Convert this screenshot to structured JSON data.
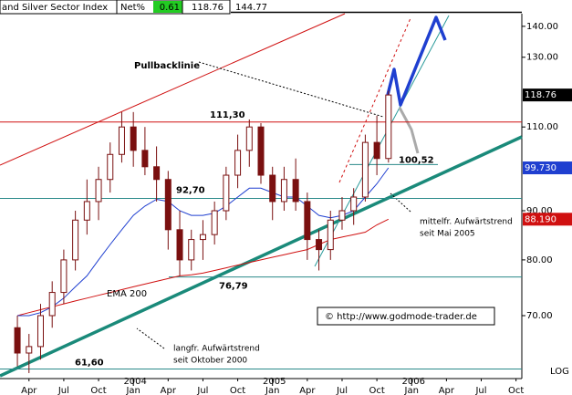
{
  "chart_data": {
    "type": "candlestick",
    "title": "and Silver Sector Index",
    "header": {
      "net_label": "Net%",
      "net_value": 0.61,
      "last": 118.76,
      "high": 144.77
    },
    "log_scale": true,
    "ylim": [
      60.2,
      144.3
    ],
    "yticks": [
      {
        "value": 70,
        "label": "70.00"
      },
      {
        "value": 80,
        "label": "80.00"
      },
      {
        "value": 90,
        "label": "90.00"
      },
      {
        "value": 110,
        "label": "110.00"
      },
      {
        "value": 130,
        "label": "130.00"
      },
      {
        "value": 140,
        "label": "140.00"
      }
    ],
    "xlim": [
      "2003-02",
      "2006-10"
    ],
    "xticks": [
      {
        "value": "2003-04",
        "label": "Apr"
      },
      {
        "value": "2003-07",
        "label": "Jul"
      },
      {
        "value": "2003-10",
        "label": "Oct"
      },
      {
        "value": "2004-01",
        "label": "Jan"
      },
      {
        "value": "2004-04",
        "label": "Apr"
      },
      {
        "value": "2004-07",
        "label": "Jul"
      },
      {
        "value": "2004-10",
        "label": "Oct"
      },
      {
        "value": "2005-01",
        "label": "Jan"
      },
      {
        "value": "2005-04",
        "label": "Apr"
      },
      {
        "value": "2005-07",
        "label": "Jul"
      },
      {
        "value": "2005-10",
        "label": "Oct"
      },
      {
        "value": "2006-01",
        "label": "Jan"
      },
      {
        "value": "2006-04",
        "label": "Apr"
      },
      {
        "value": "2006-07",
        "label": "Jul"
      },
      {
        "value": "2006-10",
        "label": "Oct"
      }
    ],
    "year_ticks": [
      {
        "value": "2004-01",
        "label": "2004"
      },
      {
        "value": "2005-01",
        "label": "2005"
      },
      {
        "value": "2006-01",
        "label": "2006"
      }
    ],
    "x": [
      "2003-03",
      "2003-04",
      "2003-05",
      "2003-06",
      "2003-07",
      "2003-08",
      "2003-09",
      "2003-10",
      "2003-11",
      "2003-12",
      "2004-01",
      "2004-02",
      "2004-03",
      "2004-04",
      "2004-05",
      "2004-06",
      "2004-07",
      "2004-08",
      "2004-09",
      "2004-10",
      "2004-11",
      "2004-12",
      "2005-01",
      "2005-02",
      "2005-03",
      "2005-04",
      "2005-05",
      "2005-06",
      "2005-07",
      "2005-08",
      "2005-09",
      "2005-10",
      "2005-11"
    ],
    "open": [
      68,
      64,
      65,
      70,
      74,
      80,
      88,
      92,
      97,
      103,
      110,
      104,
      100,
      97,
      86,
      80,
      84,
      85,
      90,
      98,
      104,
      110,
      98,
      92,
      97,
      92,
      84,
      82,
      88,
      90,
      93,
      106,
      102
    ],
    "high": [
      70,
      67,
      72,
      76,
      82,
      90,
      97,
      100,
      106,
      114,
      114,
      110,
      105,
      99,
      90,
      86,
      88,
      92,
      100,
      108,
      112,
      111,
      100,
      100,
      102,
      94,
      86,
      90,
      93,
      95,
      108,
      113,
      120
    ],
    "low": [
      62,
      61,
      63,
      68,
      72,
      78,
      85,
      88,
      94,
      101,
      100,
      98,
      92,
      82,
      77,
      78,
      80,
      83,
      88,
      95,
      100,
      96,
      88,
      90,
      90,
      80,
      78,
      80,
      86,
      87,
      92,
      98,
      101
    ],
    "close": [
      64,
      65,
      70,
      74,
      80,
      88,
      92,
      97,
      103,
      110,
      104,
      100,
      97,
      86,
      80,
      84,
      85,
      90,
      98,
      104,
      110,
      98,
      92,
      97,
      92,
      84,
      82,
      88,
      90,
      93,
      106,
      102,
      118.76
    ],
    "candle_color": "#7a1010",
    "lines": [
      {
        "name": "EMA 200",
        "color": "#d01010",
        "values": [
          70,
          70.5,
          71,
          71.5,
          72,
          72.5,
          73,
          73.5,
          74,
          74.5,
          75,
          75.5,
          76,
          76.5,
          77,
          77.2,
          77.5,
          78,
          78.5,
          79,
          79.5,
          80,
          80.5,
          81,
          81.5,
          82,
          83,
          84,
          84.5,
          85,
          85.5,
          87,
          88.19
        ]
      },
      {
        "color": "#1f3fd0",
        "values": [
          70,
          70,
          70.5,
          71.5,
          73,
          75,
          77,
          80,
          83,
          86,
          89,
          91,
          92.5,
          92,
          90,
          89,
          89,
          89.5,
          91,
          93,
          95,
          95,
          94,
          93,
          93,
          91,
          89,
          88.5,
          89,
          90,
          93,
          96,
          99.73
        ]
      }
    ],
    "levels": [
      {
        "value": 111.3,
        "label": "111,30",
        "color": "#d01010"
      },
      {
        "value": 92.7,
        "label": "92,70",
        "color": "#2a8a8a"
      },
      {
        "value": 100.52,
        "label": "100,52",
        "color": "#2a8a8a"
      },
      {
        "value": 76.79,
        "label": "76,79",
        "color": "#2a8a8a"
      },
      {
        "value": 61.6,
        "label": "61,60",
        "color": "#2a8a8a"
      }
    ],
    "price_labels": [
      {
        "value": 118.76,
        "color": "#000000"
      },
      {
        "value": 99.73,
        "label": "99.730",
        "color": "#1f3fd0"
      },
      {
        "value": 88.19,
        "label": "88.190",
        "color": "#d01010"
      }
    ],
    "annotations": [
      "Pullbacklinie",
      "mittelfr. Aufwärtstrend",
      "seit Mai 2005",
      "langfr. Aufwärtstrend",
      "seit Oktober 2000"
    ],
    "source": "© http://www.godmode-trader.de",
    "scale_label": "LOG"
  }
}
